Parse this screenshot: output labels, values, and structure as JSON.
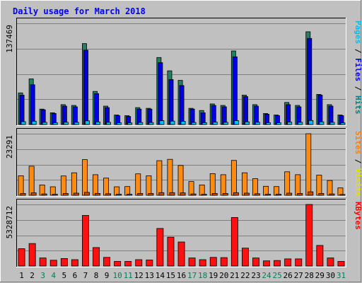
{
  "chart_data": {
    "type": "bar",
    "title": "Daily usage for March 2018",
    "categories": [
      "1",
      "2",
      "3",
      "4",
      "5",
      "6",
      "7",
      "8",
      "9",
      "10",
      "11",
      "12",
      "13",
      "14",
      "15",
      "16",
      "17",
      "18",
      "19",
      "20",
      "21",
      "22",
      "23",
      "24",
      "25",
      "26",
      "27",
      "28",
      "29",
      "30",
      "31"
    ],
    "weekend_days": [
      "3",
      "4",
      "10",
      "11",
      "17",
      "18",
      "24",
      "25",
      "31"
    ],
    "panels": [
      {
        "name": "pages-files-hits",
        "axis_max_label": "137469",
        "ymax": 137469,
        "legend": [
          {
            "text": "Pages",
            "color": "#00c0f0"
          },
          {
            "text": " / ",
            "color": "#000000"
          },
          {
            "text": "Files",
            "color": "#0000ff"
          },
          {
            "text": " / ",
            "color": "#000000"
          },
          {
            "text": "Hits",
            "color": "#008080"
          }
        ],
        "series": [
          {
            "name": "Hits",
            "color": "#208060",
            "values": [
              43000,
              62000,
              21000,
              16000,
              27000,
              26000,
              110000,
              45000,
              25000,
              13000,
              12000,
              23000,
              22000,
              91000,
              73000,
              60000,
              22000,
              19000,
              28000,
              26000,
              100000,
              40000,
              27000,
              15000,
              13000,
              30000,
              26000,
              126000,
              41000,
              27000,
              13000
            ]
          },
          {
            "name": "Files",
            "color": "#0000e0",
            "values": [
              40000,
              54000,
              20000,
              15000,
              25000,
              24000,
              101000,
              42000,
              23000,
              12000,
              11000,
              21000,
              21000,
              84000,
              61000,
              53000,
              21000,
              16000,
              26000,
              24000,
              92000,
              38000,
              25000,
              14000,
              12000,
              27000,
              24000,
              117000,
              40000,
              25000,
              12000
            ]
          },
          {
            "name": "Pages",
            "color": "#00c0f0",
            "values": [
              3800,
              4500,
              3000,
              2400,
              3100,
              3000,
              5000,
              3500,
              3000,
              2300,
              2200,
              2800,
              2700,
              5200,
              4600,
              4300,
              2800,
              2500,
              3200,
              3000,
              5300,
              3700,
              3100,
              2400,
              2300,
              3300,
              3000,
              5500,
              3700,
              3000,
              2200
            ]
          }
        ]
      },
      {
        "name": "sites-visits",
        "axis_max_label": "23291",
        "ymax": 23291,
        "legend": [
          {
            "text": "Sites",
            "color": "#ff8000"
          },
          {
            "text": " / ",
            "color": "#000000"
          },
          {
            "text": "Visits",
            "color": "#e0e000"
          }
        ],
        "series": [
          {
            "name": "Visits",
            "color": "#ff8a10",
            "values": [
              7400,
              11000,
              3900,
              3200,
              7300,
              8500,
              13500,
              7800,
              6500,
              3200,
              3300,
              8100,
              7400,
              13100,
              13600,
              11300,
              5200,
              3900,
              8200,
              7800,
              13200,
              8500,
              6300,
              3400,
              3300,
              8900,
              7800,
              23291,
              7600,
              5600,
              2800
            ]
          },
          {
            "name": "Sites",
            "color": "#c05000",
            "values": [
              700,
              900,
              500,
              400,
              700,
              800,
              1100,
              700,
              600,
              400,
              400,
              700,
              700,
              1000,
              1000,
              900,
              500,
              400,
              700,
              700,
              1000,
              800,
              600,
              400,
              400,
              800,
              700,
              1300,
              700,
              500,
              300
            ]
          }
        ]
      },
      {
        "name": "kbytes",
        "axis_max_label": "5328712",
        "ymax": 5328712,
        "legend": [
          {
            "text": "KBytes",
            "color": "#ff0000"
          }
        ],
        "series": [
          {
            "name": "KBytes",
            "color": "#ff1010",
            "values": [
              1500000,
              1950000,
              700000,
              500000,
              650000,
              550000,
              4380000,
              1600000,
              750000,
              400000,
              400000,
              550000,
              520000,
              3250000,
              2500000,
              2080000,
              700000,
              550000,
              750000,
              730000,
              4200000,
              1550000,
              700000,
              450000,
              480000,
              620000,
              620000,
              5328712,
              1780000,
              700000,
              400000
            ]
          }
        ]
      }
    ]
  }
}
